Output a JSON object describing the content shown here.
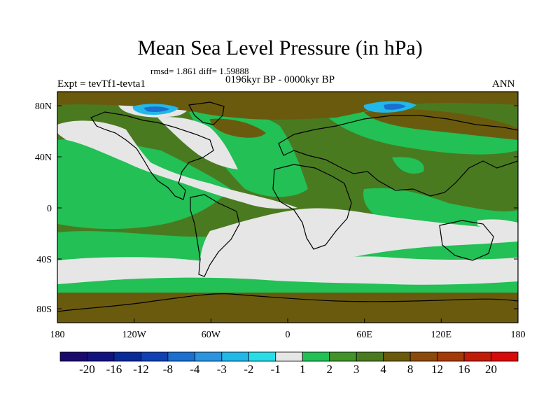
{
  "title": "Mean Sea Level Pressure (in hPa)",
  "stats": "rmsd= 1.861 diff= 1.59888",
  "period": "0196kyr BP - 0000kyr BP",
  "experiment": "Expt = tevTf1-tevta1",
  "season": "ANN",
  "axes": {
    "lat_ticks": [
      "80N",
      "40N",
      "0",
      "40S",
      "80S"
    ],
    "lon_ticks": [
      "180",
      "120W",
      "60W",
      "0",
      "60E",
      "120E",
      "180"
    ]
  },
  "colorbar": {
    "labels": [
      "-20",
      "-16",
      "-12",
      "-8",
      "-4",
      "-3",
      "-2",
      "-1",
      "1",
      "2",
      "3",
      "4",
      "8",
      "12",
      "16",
      "20"
    ],
    "colors": [
      "#1a0a6e",
      "#13137f",
      "#0a2a9a",
      "#1040b4",
      "#1a6fd0",
      "#2a94e0",
      "#22b8e8",
      "#28dde8",
      "#e6e6e6",
      "#22c055",
      "#41932a",
      "#4a7a20",
      "#6a5a0e",
      "#8c4a0a",
      "#a43a08",
      "#c01c0a",
      "#d80a0a"
    ]
  },
  "field_colors": {
    "background": "#4a7a20",
    "green": "#22c055",
    "dark_green": "#41932a",
    "light_gray": "#e6e6e6",
    "brown": "#6a5a0e",
    "dark_brown": "#8c4a0a",
    "cyan": "#22b8e8",
    "blue": "#1a6fd0"
  }
}
